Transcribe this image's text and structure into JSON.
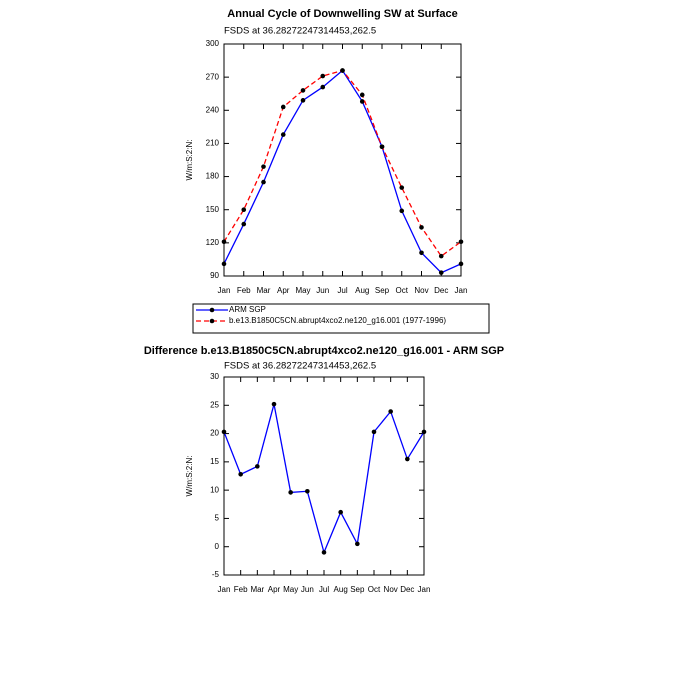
{
  "chart_data": [
    {
      "type": "line",
      "title": "Annual Cycle of Downwelling SW at Surface",
      "subtitle": "FSDS at 36.28272247314453,262.5",
      "ylabel": "W/m:S:2:N:",
      "categories": [
        "Jan",
        "Feb",
        "Mar",
        "Apr",
        "May",
        "Jun",
        "Jul",
        "Aug",
        "Sep",
        "Oct",
        "Nov",
        "Dec",
        "Jan"
      ],
      "series": [
        {
          "name": "ARM SGP",
          "color": "#0000ff",
          "linestyle": "solid",
          "values": [
            101,
            137,
            175,
            218,
            249,
            261,
            276,
            248,
            207,
            149,
            111,
            93,
            101
          ]
        },
        {
          "name": "b.e13.B1850C5CN.abrupt4xco2.ne120_g16.001 (1977-1996)",
          "color": "#ff0000",
          "linestyle": "dashed",
          "values": [
            121,
            150,
            189,
            243,
            258,
            271,
            276,
            254,
            207,
            170,
            134,
            108,
            121
          ]
        }
      ],
      "marker_color": "#000000",
      "ylim": [
        90,
        300
      ],
      "yticks": [
        90,
        120,
        150,
        180,
        210,
        240,
        270,
        300
      ],
      "legend": "bottom"
    },
    {
      "type": "line",
      "title": "Difference b.e13.B1850C5CN.abrupt4xco2.ne120_g16.001 - ARM SGP",
      "subtitle": "FSDS at 36.28272247314453,262.5",
      "ylabel": "W/m:S:2:N:",
      "categories": [
        "Jan",
        "Feb",
        "Mar",
        "Apr",
        "May",
        "Jun",
        "Jul",
        "Aug",
        "Sep",
        "Oct",
        "Nov",
        "Dec",
        "Jan"
      ],
      "values": [
        20.3,
        12.8,
        14.2,
        25.2,
        9.6,
        9.8,
        -1,
        6.1,
        0.5,
        20.3,
        23.9,
        15.5,
        20.3
      ],
      "color": "#0000ff",
      "marker_color": "#000000",
      "ylim": [
        -5,
        30
      ],
      "yticks": [
        -5,
        0,
        5,
        10,
        15,
        20,
        25,
        30
      ]
    }
  ]
}
